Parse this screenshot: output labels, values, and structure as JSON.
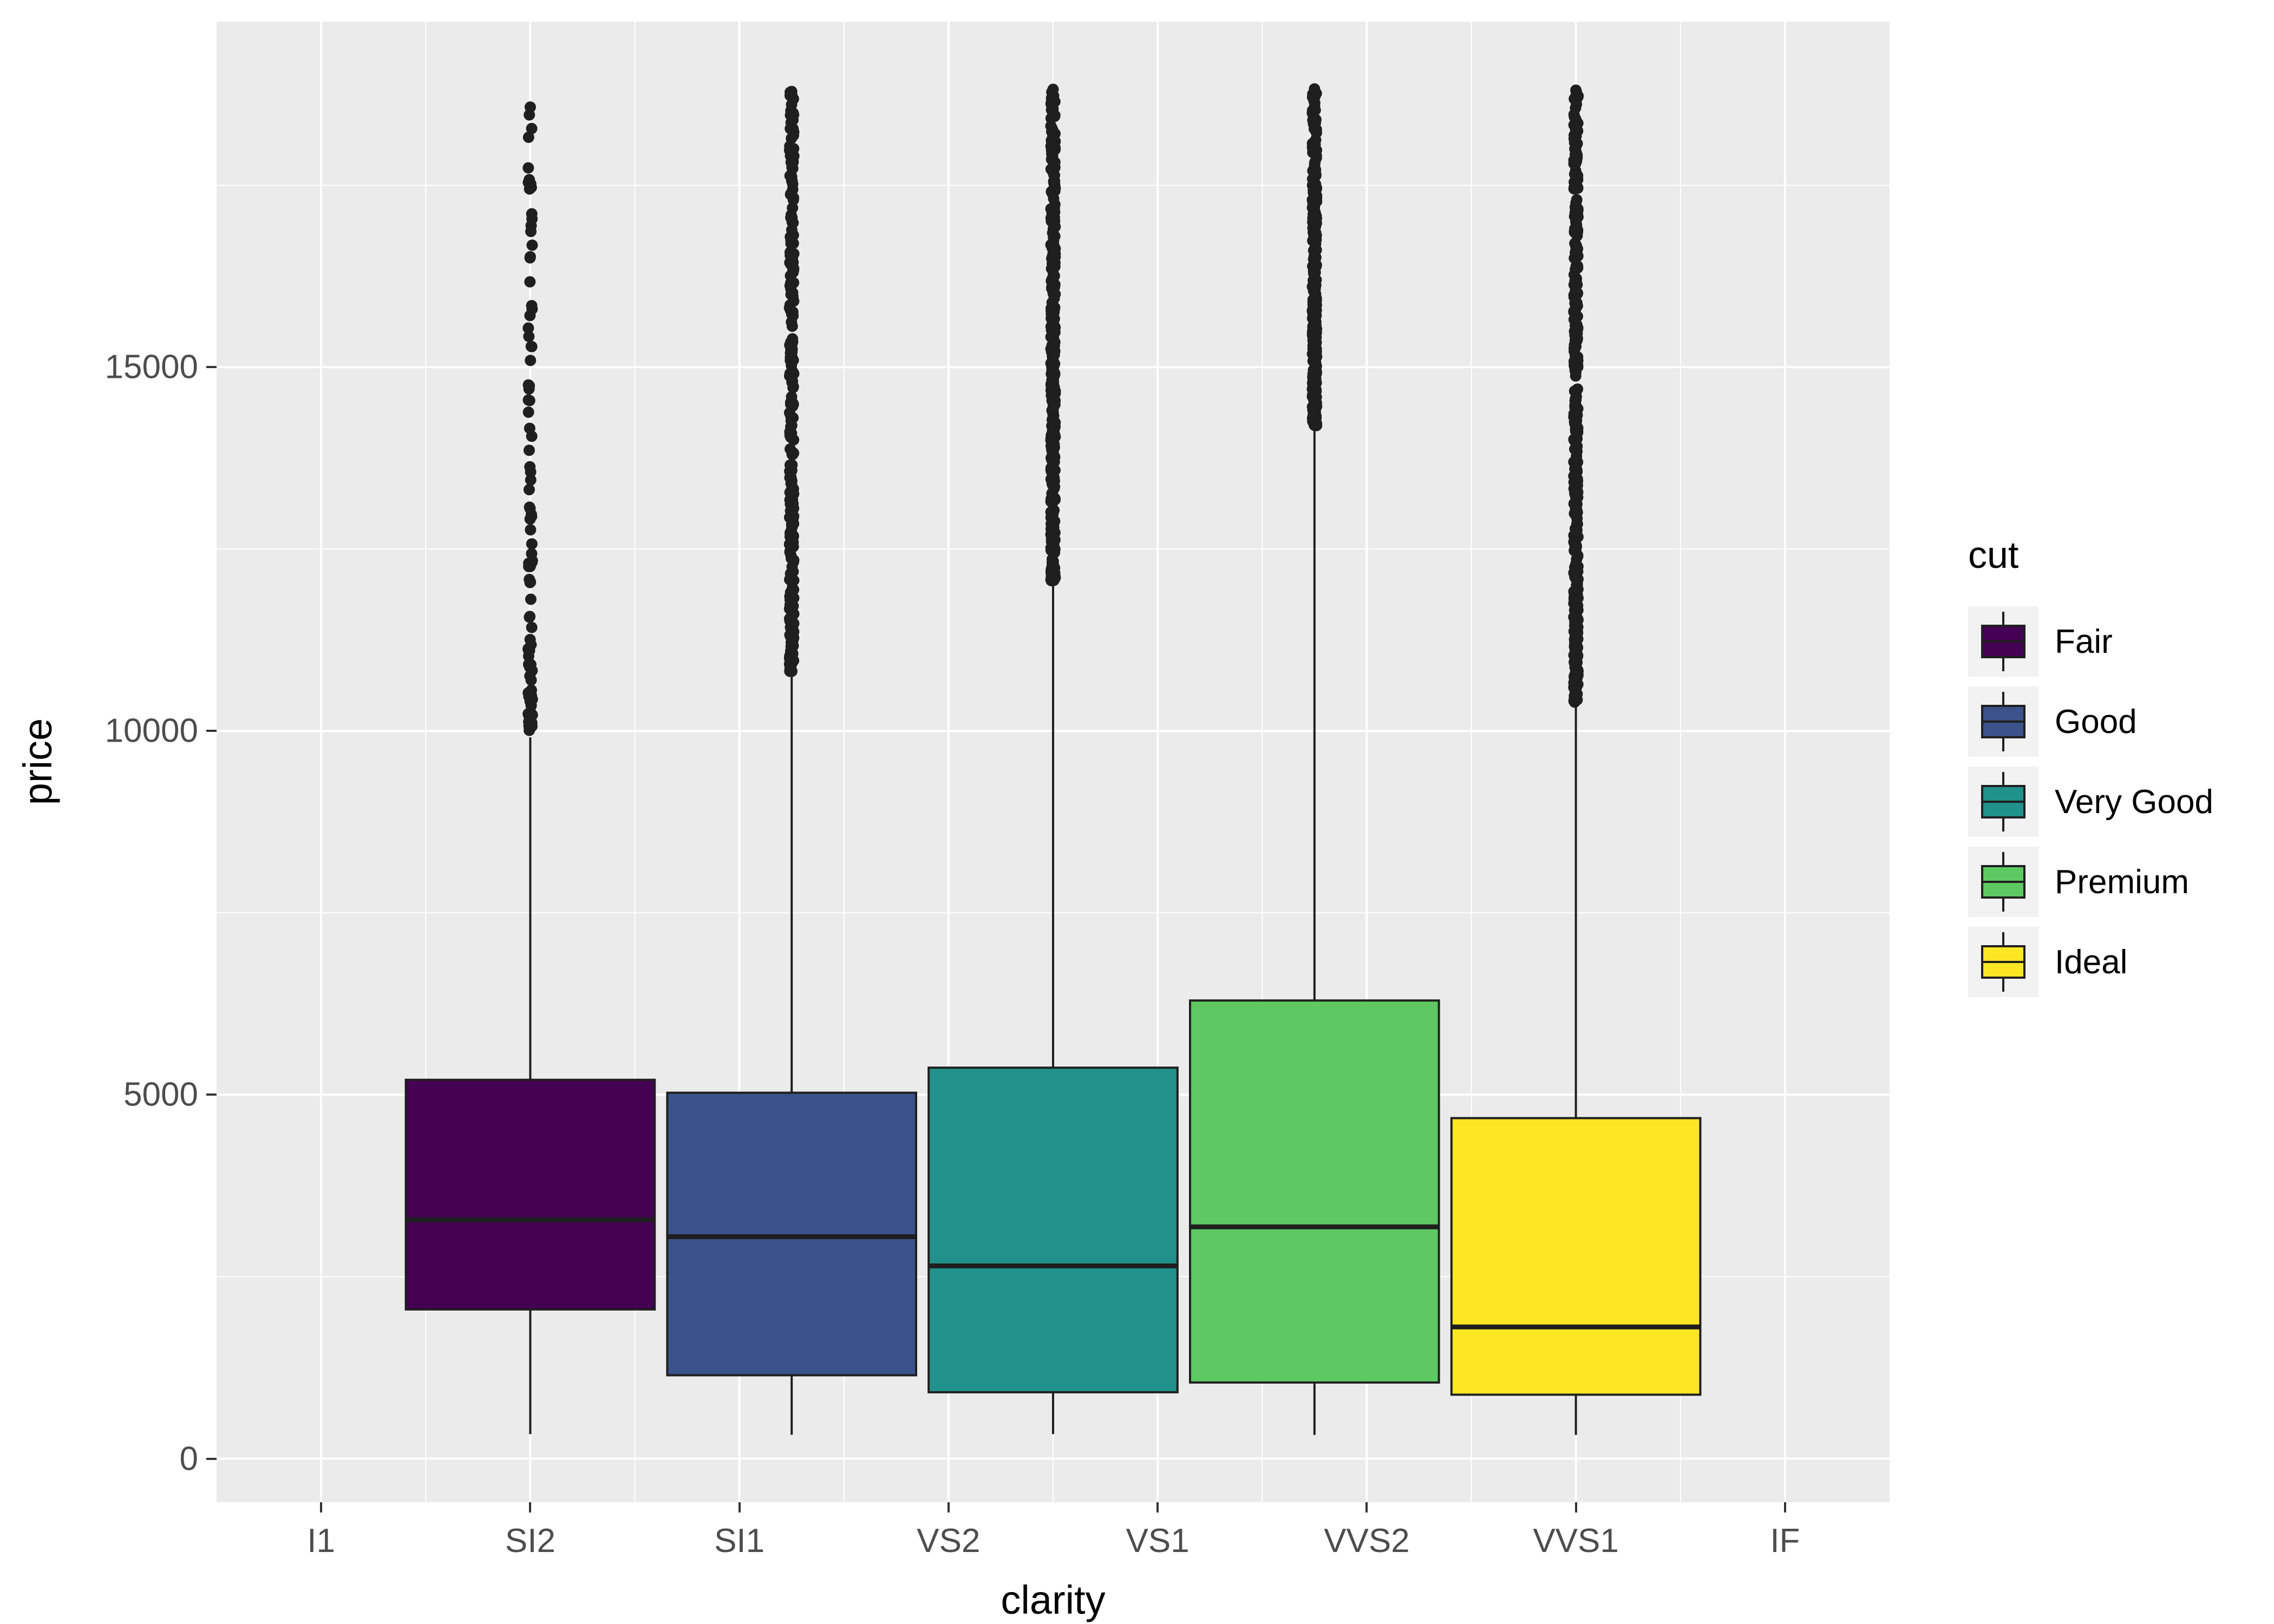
{
  "chart_data": {
    "type": "boxplot",
    "title": "",
    "xlabel": "clarity",
    "ylabel": "price",
    "x_ticks": [
      "I1",
      "SI2",
      "SI1",
      "VS2",
      "VS1",
      "VVS2",
      "VVS1",
      "IF"
    ],
    "x_tick_positions": [
      1,
      2,
      3,
      4,
      5,
      6,
      7,
      8
    ],
    "x_minor": [
      1.5,
      2.5,
      3.5,
      4.5,
      5.5,
      6.5,
      7.5
    ],
    "x_range": [
      0.5,
      8.5
    ],
    "y_ticks": [
      0,
      5000,
      10000,
      15000
    ],
    "y_tick_labels": [
      "0",
      "5000",
      "10000",
      "15000"
    ],
    "y_minor": [
      2500,
      7500,
      12500,
      17500
    ],
    "y_range": [
      -599,
      19748
    ],
    "panel_background": "#EBEBEB",
    "gridline_color": "#FFFFFF",
    "tick_label_color": "#4D4D4D",
    "box_outline_color": "#1F1F1F",
    "legend": {
      "title": "cut",
      "position": "right",
      "entries": [
        {
          "label": "Fair",
          "color": "#440154"
        },
        {
          "label": "Good",
          "color": "#3B528B"
        },
        {
          "label": "Very Good",
          "color": "#21918C"
        },
        {
          "label": "Premium",
          "color": "#5EC962"
        },
        {
          "label": "Ideal",
          "color": "#FDE725"
        }
      ]
    },
    "series": [
      {
        "name": "Fair",
        "color": "#440154",
        "x": 2,
        "box_width": 1.19,
        "whisker_low": 337,
        "q1": 2050,
        "median": 3282,
        "q3": 5206,
        "whisker_high": 9913,
        "outliers": {
          "min": 10000,
          "max": 18574,
          "count": 95,
          "bias": 1.8
        }
      },
      {
        "name": "Good",
        "color": "#3B528B",
        "x": 3.25,
        "box_width": 1.19,
        "whisker_low": 327,
        "q1": 1145,
        "median": 3050,
        "q3": 5028,
        "whisker_high": 10796,
        "outliers": {
          "min": 10820,
          "max": 18788,
          "count": 290,
          "bias": 1.25
        }
      },
      {
        "name": "Very Good",
        "color": "#21918C",
        "x": 4.5,
        "box_width": 1.19,
        "whisker_low": 336,
        "q1": 912,
        "median": 2648,
        "q3": 5373,
        "whisker_high": 12030,
        "outliers": {
          "min": 12060,
          "max": 18818,
          "count": 360,
          "bias": 1.25
        }
      },
      {
        "name": "Premium",
        "color": "#5EC962",
        "x": 5.75,
        "box_width": 1.19,
        "whisker_low": 326,
        "q1": 1046,
        "median": 3185,
        "q3": 6296,
        "whisker_high": 14160,
        "outliers": {
          "min": 14190,
          "max": 18823,
          "count": 320,
          "bias": 1.25
        }
      },
      {
        "name": "Ideal",
        "color": "#FDE725",
        "x": 7,
        "box_width": 1.19,
        "whisker_low": 326,
        "q1": 878,
        "median": 1810,
        "q3": 4679,
        "whisker_high": 10366,
        "outliers": {
          "min": 10390,
          "max": 18806,
          "count": 430,
          "bias": 1.25
        }
      }
    ]
  }
}
